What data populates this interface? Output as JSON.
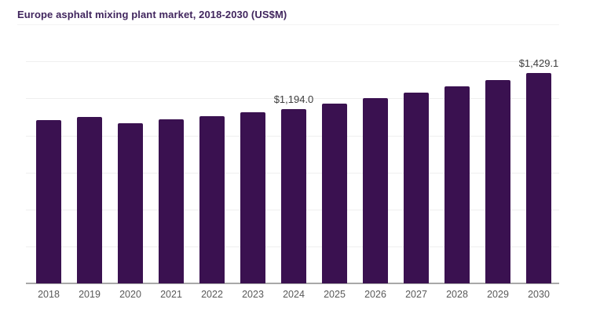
{
  "title": "Europe asphalt mixing plant market, 2018-2030 (US$M)",
  "colors": {
    "bar_color": "#3a1150",
    "title_color": "#41265e",
    "axis_color": "#a8a8a8",
    "grid_color": "#efefef",
    "tick_color": "#595959",
    "label_color": "#3d3d3d",
    "divider_color": "#f3f3f3",
    "background": "#ffffff"
  },
  "chart_data": {
    "type": "bar",
    "title": "Europe asphalt mixing plant market, 2018-2030 (US$M)",
    "unit": "US$M",
    "xlabel": "",
    "ylabel": "",
    "categories": [
      "2018",
      "2019",
      "2020",
      "2021",
      "2022",
      "2023",
      "2024",
      "2025",
      "2026",
      "2027",
      "2028",
      "2029",
      "2030"
    ],
    "values": [
      1122,
      1144,
      1106,
      1128,
      1148,
      1173,
      1194.0,
      1234,
      1270,
      1305,
      1343,
      1386,
      1429.1
    ],
    "data_labels": [
      {
        "category": "2024",
        "text": "$1,194.0"
      },
      {
        "category": "2030",
        "text": "$1,429.1"
      }
    ],
    "grid": "horizontal-faint",
    "legend": "none",
    "y_axis_ticks": "none shown (value axis truncated, non-zero baseline)"
  }
}
